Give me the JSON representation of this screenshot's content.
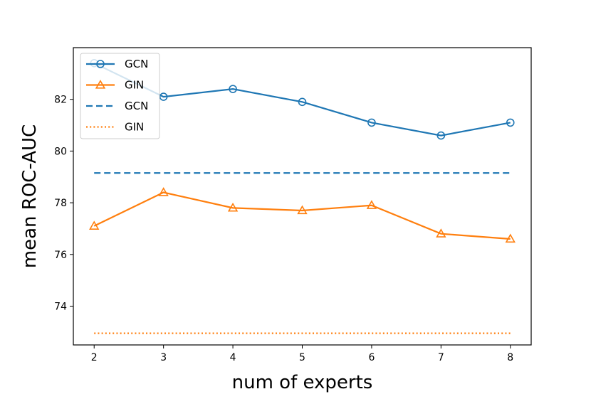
{
  "chart_data": {
    "type": "line",
    "title": "",
    "xlabel": "num of experts",
    "ylabel": "mean ROC-AUC",
    "x": [
      2,
      3,
      4,
      5,
      6,
      7,
      8
    ],
    "xticks": [
      "2",
      "3",
      "4",
      "5",
      "6",
      "7",
      "8"
    ],
    "yticks": [
      "74",
      "76",
      "78",
      "80",
      "82"
    ],
    "xlim": [
      1.7,
      8.3
    ],
    "ylim": [
      72.5,
      84.0
    ],
    "grid": false,
    "legend_position": "upper-left",
    "series": [
      {
        "name": "GCN",
        "style": "solid",
        "marker": "circle",
        "color": "#1f77b4",
        "values": [
          83.4,
          82.1,
          82.4,
          81.9,
          81.1,
          80.6,
          81.1
        ]
      },
      {
        "name": "GIN",
        "style": "solid",
        "marker": "triangle",
        "color": "#ff7f0e",
        "values": [
          77.1,
          78.4,
          77.8,
          77.7,
          77.9,
          76.8,
          76.6
        ]
      },
      {
        "name": "GCN",
        "style": "dashed",
        "marker": "none",
        "color": "#1f77b4",
        "values": [
          79.15,
          79.15,
          79.15,
          79.15,
          79.15,
          79.15,
          79.15
        ]
      },
      {
        "name": "GIN",
        "style": "dotted",
        "marker": "none",
        "color": "#ff7f0e",
        "values": [
          72.95,
          72.95,
          72.95,
          72.95,
          72.95,
          72.95,
          72.95
        ]
      }
    ]
  }
}
